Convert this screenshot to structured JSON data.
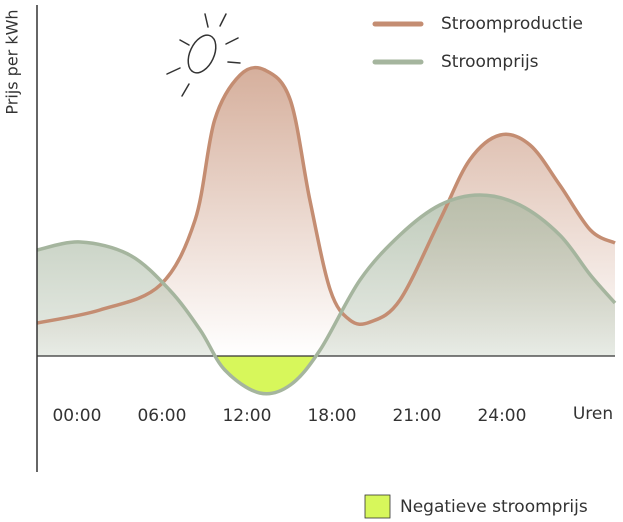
{
  "chart_data": {
    "type": "area",
    "ylabel": "Prijs per kWh",
    "xlabel": "Uren",
    "xlim": [
      -0.47,
      6.33
    ],
    "ylim": [
      -12,
      35
    ],
    "xticks": [
      {
        "value": 0,
        "label": "00:00"
      },
      {
        "value": 1,
        "label": "06:00"
      },
      {
        "value": 2,
        "label": "12:00"
      },
      {
        "value": 3,
        "label": "18:00"
      },
      {
        "value": 4,
        "label": "21:00"
      },
      {
        "value": 5,
        "label": "24:00"
      }
    ],
    "series": [
      {
        "name": "Stroomproductie",
        "color": "#c48d72",
        "x": [
          -0.47,
          0.27,
          0.98,
          1.39,
          1.62,
          1.92,
          2.21,
          2.51,
          2.74,
          2.98,
          3.21,
          3.45,
          3.8,
          4.27,
          4.62,
          4.98,
          5.33,
          5.68,
          6.04,
          6.33
        ],
        "values": [
          3.3,
          4.6,
          7.1,
          13.6,
          23.6,
          28.1,
          28.6,
          25.6,
          15.6,
          6.6,
          3.6,
          3.4,
          5.6,
          13.6,
          19.6,
          22.1,
          21.1,
          17.1,
          12.6,
          11.3
        ]
      },
      {
        "name": "Stroomprijs",
        "color": "#a5b59e",
        "x": [
          -0.47,
          0.04,
          0.62,
          1.09,
          1.45,
          1.74,
          2.15,
          2.51,
          2.86,
          3.33,
          3.8,
          4.27,
          4.74,
          5.21,
          5.68,
          6.04,
          6.33
        ],
        "values": [
          10.6,
          11.4,
          10.1,
          6.6,
          2.6,
          -1.4,
          -3.7,
          -2.9,
          0.6,
          7.6,
          12.1,
          15.1,
          16.1,
          15.1,
          12.1,
          8.1,
          5.3
        ]
      }
    ],
    "negative_legend": {
      "label": "Negatieve stroomprijs",
      "color": "#d7f75b"
    }
  }
}
